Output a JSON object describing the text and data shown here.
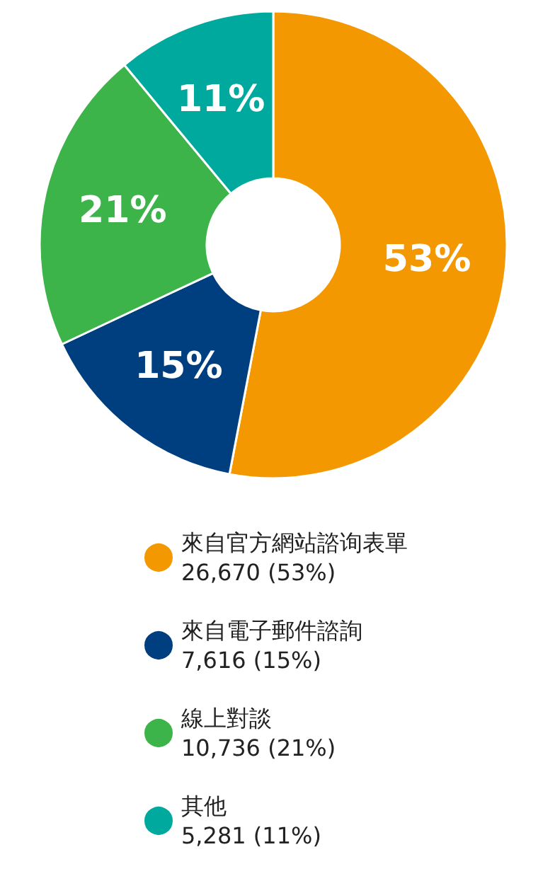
{
  "chart_data": {
    "type": "donut",
    "categories": [
      "來自官方網站諮询表單",
      "來自電子郵件諮詢",
      "線上對談",
      "其他"
    ],
    "values": [
      53,
      15,
      21,
      11
    ],
    "colors": [
      "#f39800",
      "#003f7f",
      "#3cb44a",
      "#00a99d"
    ],
    "value_labels": [
      "53%",
      "15%",
      "21%",
      "11%"
    ],
    "annotations": [
      "26,670 (53%)",
      "7,616 (15%)",
      "10,736 (21%)",
      "5,281 (11%)"
    ],
    "legend": "bottom"
  }
}
